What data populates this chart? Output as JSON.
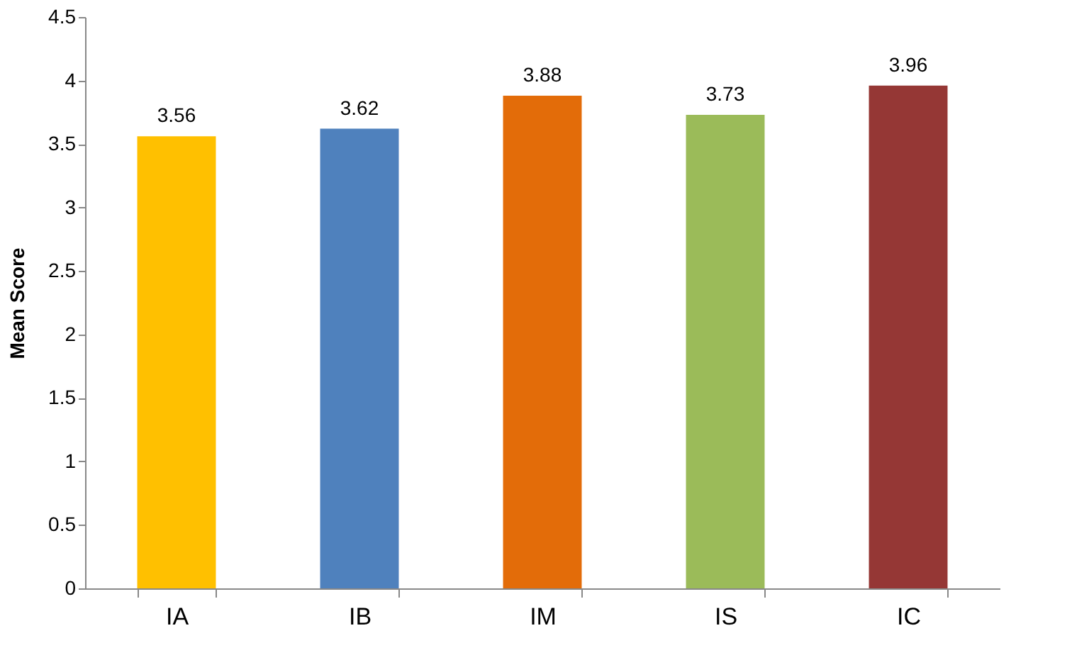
{
  "chart_data": {
    "type": "bar",
    "ylabel": "Mean Score",
    "categories": [
      "IA",
      "IB",
      "IM",
      "IS",
      "IC"
    ],
    "values": [
      3.56,
      3.62,
      3.88,
      3.73,
      3.96
    ],
    "colors": [
      "#ffc000",
      "#4f81bd",
      "#e36c09",
      "#9bbb59",
      "#953735"
    ],
    "ylim": [
      0,
      4.5
    ],
    "yticks": [
      0,
      0.5,
      1,
      1.5,
      2,
      2.5,
      3,
      3.5,
      4,
      4.5
    ],
    "grid": false,
    "legend": false,
    "data_labels": true
  }
}
